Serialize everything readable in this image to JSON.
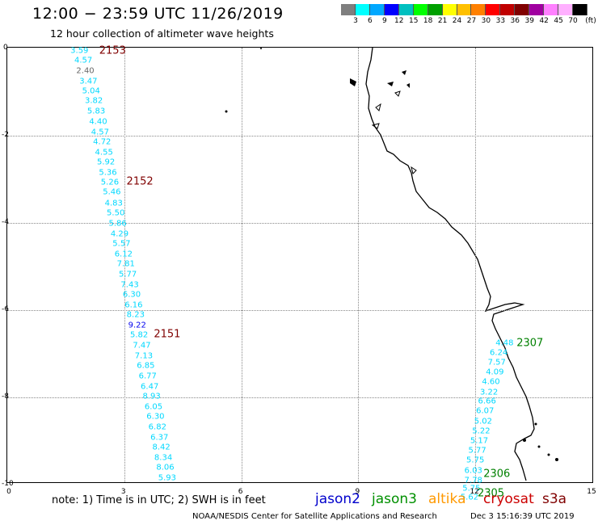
{
  "title": "12:00 − 23:59 UTC 11/26/2019",
  "subtitle": "12 hour collection of altimeter wave heights",
  "colorbar": {
    "colors": [
      "#7f7f7f",
      "#00ffff",
      "#00a8ff",
      "#0000ff",
      "#00c0c0",
      "#00ff00",
      "#00a000",
      "#ffff00",
      "#ffc000",
      "#ff8000",
      "#ff0000",
      "#c00000",
      "#800000",
      "#a000a0",
      "#ff80ff",
      "#ffb0ff",
      "#000000"
    ],
    "ticks": [
      "3",
      "6",
      "9",
      "12",
      "15",
      "18",
      "21",
      "24",
      "27",
      "30",
      "33",
      "36",
      "39",
      "42",
      "45",
      "70",
      "(ft)"
    ]
  },
  "axes": {
    "x_ticks": [
      "0",
      "3",
      "6",
      "9",
      "12",
      "15"
    ],
    "y_ticks": [
      "0",
      "-2",
      "-4",
      "-6",
      "-8",
      "-10"
    ]
  },
  "track_labels": [
    {
      "label": "2153",
      "type": "cryosat",
      "x": 2.7,
      "y": -0.05
    },
    {
      "label": "2152",
      "type": "cryosat",
      "x": 3.4,
      "y": -3.05
    },
    {
      "label": "2151",
      "type": "cryosat",
      "x": 4.1,
      "y": -6.55
    },
    {
      "label": "2307",
      "type": "jason3",
      "x": 13.4,
      "y": -6.75
    },
    {
      "label": "2306",
      "type": "jason3",
      "x": 12.55,
      "y": -9.75
    },
    {
      "label": "2305",
      "type": "jason3",
      "x": 12.4,
      "y": -10.2
    }
  ],
  "wave_heights": [
    {
      "v": "3.59",
      "x": 1.85,
      "y": -0.05,
      "c": "cyan"
    },
    {
      "v": "4.57",
      "x": 1.95,
      "y": -0.28,
      "c": "cyan"
    },
    {
      "v": "2.40",
      "x": 2.0,
      "y": -0.52,
      "c": "gray"
    },
    {
      "v": "3.47",
      "x": 2.08,
      "y": -0.75,
      "c": "cyan"
    },
    {
      "v": "5.04",
      "x": 2.15,
      "y": -0.98,
      "c": "cyan"
    },
    {
      "v": "3.82",
      "x": 2.22,
      "y": -1.2,
      "c": "cyan"
    },
    {
      "v": "5.83",
      "x": 2.28,
      "y": -1.44,
      "c": "cyan"
    },
    {
      "v": "4.40",
      "x": 2.33,
      "y": -1.68,
      "c": "cyan"
    },
    {
      "v": "4.57",
      "x": 2.38,
      "y": -1.92,
      "c": "cyan"
    },
    {
      "v": "4.72",
      "x": 2.43,
      "y": -2.14,
      "c": "cyan"
    },
    {
      "v": "4.55",
      "x": 2.48,
      "y": -2.38,
      "c": "cyan"
    },
    {
      "v": "5.92",
      "x": 2.53,
      "y": -2.62,
      "c": "cyan"
    },
    {
      "v": "5.36",
      "x": 2.58,
      "y": -2.85,
      "c": "cyan"
    },
    {
      "v": "5.26",
      "x": 2.63,
      "y": -3.08,
      "c": "cyan"
    },
    {
      "v": "5.46",
      "x": 2.68,
      "y": -3.3,
      "c": "cyan"
    },
    {
      "v": "4.83",
      "x": 2.73,
      "y": -3.55,
      "c": "cyan"
    },
    {
      "v": "5.50",
      "x": 2.78,
      "y": -3.78,
      "c": "cyan"
    },
    {
      "v": "5.86",
      "x": 2.83,
      "y": -4.02,
      "c": "cyan"
    },
    {
      "v": "4.29",
      "x": 2.88,
      "y": -4.25,
      "c": "cyan"
    },
    {
      "v": "5.57",
      "x": 2.93,
      "y": -4.48,
      "c": "cyan"
    },
    {
      "v": "6.12",
      "x": 2.98,
      "y": -4.72,
      "c": "cyan"
    },
    {
      "v": "7.81",
      "x": 3.04,
      "y": -4.95,
      "c": "cyan"
    },
    {
      "v": "5.77",
      "x": 3.09,
      "y": -5.18,
      "c": "cyan"
    },
    {
      "v": "7.43",
      "x": 3.14,
      "y": -5.42,
      "c": "cyan"
    },
    {
      "v": "6.30",
      "x": 3.19,
      "y": -5.65,
      "c": "cyan"
    },
    {
      "v": "6.16",
      "x": 3.24,
      "y": -5.88,
      "c": "cyan"
    },
    {
      "v": "8.23",
      "x": 3.29,
      "y": -6.12,
      "c": "cyan"
    },
    {
      "v": "9.22",
      "x": 3.33,
      "y": -6.35,
      "c": "blue"
    },
    {
      "v": "5.82",
      "x": 3.38,
      "y": -6.58,
      "c": "cyan"
    },
    {
      "v": "7.47",
      "x": 3.45,
      "y": -6.82,
      "c": "cyan"
    },
    {
      "v": "7.13",
      "x": 3.5,
      "y": -7.05,
      "c": "cyan"
    },
    {
      "v": "6.85",
      "x": 3.55,
      "y": -7.28,
      "c": "cyan"
    },
    {
      "v": "6.77",
      "x": 3.6,
      "y": -7.52,
      "c": "cyan"
    },
    {
      "v": "6.47",
      "x": 3.65,
      "y": -7.75,
      "c": "cyan"
    },
    {
      "v": "8.93",
      "x": 3.7,
      "y": -7.98,
      "c": "cyan"
    },
    {
      "v": "6.05",
      "x": 3.75,
      "y": -8.22,
      "c": "cyan"
    },
    {
      "v": "6.30",
      "x": 3.8,
      "y": -8.45,
      "c": "cyan"
    },
    {
      "v": "6.82",
      "x": 3.85,
      "y": -8.68,
      "c": "cyan"
    },
    {
      "v": "6.37",
      "x": 3.9,
      "y": -8.92,
      "c": "cyan"
    },
    {
      "v": "8.42",
      "x": 3.95,
      "y": -9.15,
      "c": "cyan"
    },
    {
      "v": "8.34",
      "x": 4.0,
      "y": -9.38,
      "c": "cyan"
    },
    {
      "v": "8.06",
      "x": 4.05,
      "y": -9.62,
      "c": "cyan"
    },
    {
      "v": "5.93",
      "x": 4.1,
      "y": -9.85,
      "c": "cyan"
    },
    {
      "v": "4.48",
      "x": 12.75,
      "y": -6.75,
      "c": "cyan"
    },
    {
      "v": "6.24",
      "x": 12.6,
      "y": -6.98,
      "c": "cyan"
    },
    {
      "v": "7.57",
      "x": 12.55,
      "y": -7.2,
      "c": "cyan"
    },
    {
      "v": "4.09",
      "x": 12.5,
      "y": -7.42,
      "c": "cyan"
    },
    {
      "v": "4.60",
      "x": 12.4,
      "y": -7.65,
      "c": "cyan"
    },
    {
      "v": "3.22",
      "x": 12.35,
      "y": -7.88,
      "c": "cyan"
    },
    {
      "v": "6.66",
      "x": 12.3,
      "y": -8.1,
      "c": "cyan"
    },
    {
      "v": "6.07",
      "x": 12.25,
      "y": -8.32,
      "c": "cyan"
    },
    {
      "v": "5.02",
      "x": 12.2,
      "y": -8.55,
      "c": "cyan"
    },
    {
      "v": "5.22",
      "x": 12.15,
      "y": -8.78,
      "c": "cyan"
    },
    {
      "v": "5.17",
      "x": 12.1,
      "y": -9.0,
      "c": "cyan"
    },
    {
      "v": "5.77",
      "x": 12.05,
      "y": -9.22,
      "c": "cyan"
    },
    {
      "v": "5.75",
      "x": 12.0,
      "y": -9.45,
      "c": "cyan"
    },
    {
      "v": "6.03",
      "x": 11.95,
      "y": -9.68,
      "c": "cyan"
    },
    {
      "v": "7.78",
      "x": 11.95,
      "y": -9.9,
      "c": "cyan"
    },
    {
      "v": "5.75",
      "x": 11.9,
      "y": -10.1,
      "c": "cyan"
    },
    {
      "v": "5.62",
      "x": 11.85,
      "y": -10.3,
      "c": "cyan"
    }
  ],
  "note": "note: 1) Time is in UTC; 2) SWH is in feet",
  "legend": [
    {
      "name": "jason2",
      "color": "#0000cc"
    },
    {
      "name": "jason3",
      "color": "#009000"
    },
    {
      "name": "altika",
      "color": "#ff9900"
    },
    {
      "name": "cryosat",
      "color": "#cc0000"
    },
    {
      "name": "s3a",
      "color": "#800000"
    }
  ],
  "credit": "NOAA/NESDIS Center for Satellite Applications and Research",
  "timestamp": "Dec  3 15:16:39 UTC 2019"
}
